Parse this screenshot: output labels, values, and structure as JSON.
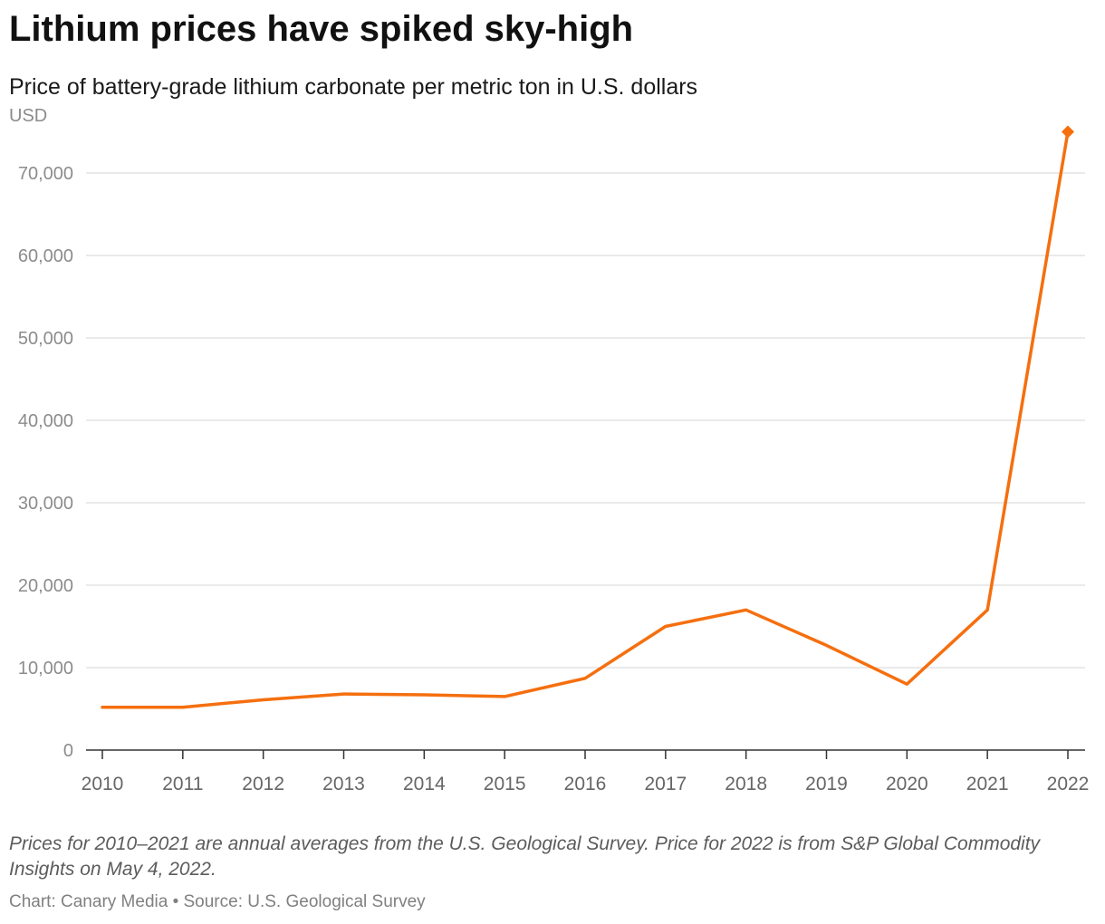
{
  "title": "Lithium prices have spiked sky-high",
  "subtitle": "Price of battery-grade lithium carbonate per metric ton in U.S. dollars",
  "note": "Prices for 2010–2021 are annual averages from the U.S. Geological Survey. Price for 2022 is from S&P Global Commodity Insights on May 4, 2022.",
  "credit": "Chart: Canary Media • Source: U.S. Geological Survey",
  "colors": {
    "line": "#f56f0f",
    "grid": "#e3e3e3",
    "axis_text": "#8c8c8c",
    "axis_line": "#333333"
  },
  "chart_data": {
    "type": "line",
    "ylabel": "USD",
    "ylim": [
      0,
      75000
    ],
    "yticks": [
      0,
      10000,
      20000,
      30000,
      40000,
      50000,
      60000,
      70000
    ],
    "ytick_labels": [
      "0",
      "10,000",
      "20,000",
      "30,000",
      "40,000",
      "50,000",
      "60,000",
      "70,000"
    ],
    "x": [
      "2010",
      "2011",
      "2012",
      "2013",
      "2014",
      "2015",
      "2016",
      "2017",
      "2018",
      "2019",
      "2020",
      "2021",
      "2022"
    ],
    "values": [
      5200,
      5200,
      6100,
      6800,
      6700,
      6500,
      8700,
      15000,
      17000,
      12700,
      8000,
      17000,
      75000
    ],
    "grid": true,
    "legend": "none",
    "highlight_last_point": true
  }
}
